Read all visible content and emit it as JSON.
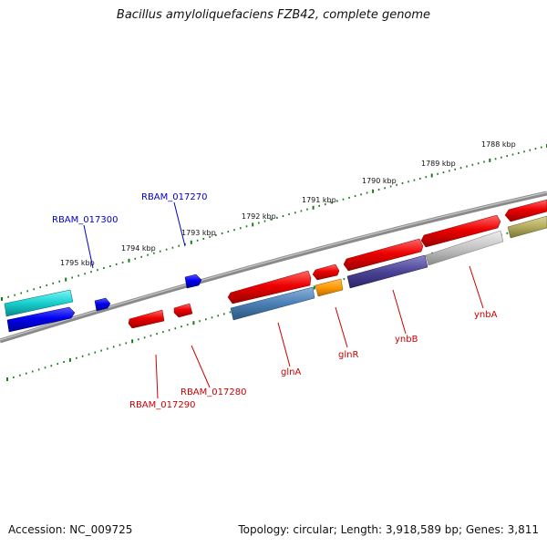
{
  "title": "Bacillus amyloliquefaciens FZB42, complete genome",
  "footer": {
    "accession": "Accession: NC_009725",
    "summary": "Topology: circular; Length: 3,918,589 bp; Genes: 3,811"
  },
  "ticks": [
    "1795 kbp",
    "1794 kbp",
    "1793 kbp",
    "1792 kbp",
    "1791 kbp",
    "1790 kbp",
    "1789 kbp",
    "1788 kbp"
  ],
  "gene_labels": {
    "top": [
      "RBAM_017300",
      "RBAM_017270"
    ],
    "bottom": [
      "RBAM_017290",
      "RBAM_017280",
      "glnA",
      "glnR",
      "ynbB",
      "ynbA"
    ]
  },
  "colors": {
    "forward_label": "#0000cc",
    "reverse_label": "#cc0000",
    "backbone": "#7a7a7a",
    "tick": "#1a7a1a"
  }
}
